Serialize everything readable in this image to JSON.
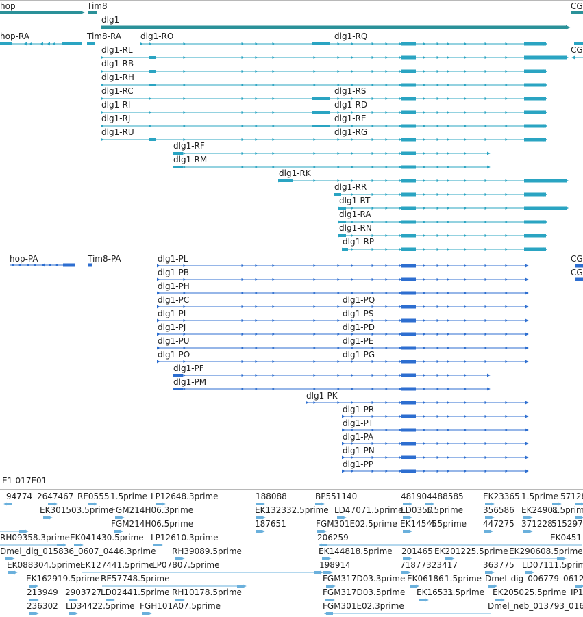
{
  "colors": {
    "gene": "#2a9199",
    "transcript": "#2aa4c2",
    "protein": "#2d6ed0",
    "est": "#6ab0dc",
    "separator": "#b8b8b8",
    "label": "#222222"
  },
  "tracks": {
    "est_track_label": "E1-017E01"
  },
  "genes": [
    {
      "name": "hop"
    },
    {
      "name": "Tim8"
    },
    {
      "name": "dlg1"
    },
    {
      "name": "CG"
    }
  ],
  "transcripts": [
    {
      "name": "hop-RA"
    },
    {
      "name": "Tim8-RA"
    },
    {
      "name": "dlg1-RO"
    },
    {
      "name": "dlg1-RQ"
    },
    {
      "name": "dlg1-RL"
    },
    {
      "name": "CG"
    },
    {
      "name": "dlg1-RB"
    },
    {
      "name": "dlg1-RH"
    },
    {
      "name": "dlg1-RC"
    },
    {
      "name": "dlg1-RS"
    },
    {
      "name": "dlg1-RI"
    },
    {
      "name": "dlg1-RD"
    },
    {
      "name": "dlg1-RJ"
    },
    {
      "name": "dlg1-RE"
    },
    {
      "name": "dlg1-RU"
    },
    {
      "name": "dlg1-RG"
    },
    {
      "name": "dlg1-RF"
    },
    {
      "name": "dlg1-RM"
    },
    {
      "name": "dlg1-RK"
    },
    {
      "name": "dlg1-RR"
    },
    {
      "name": "dlg1-RT"
    },
    {
      "name": "dlg1-RA"
    },
    {
      "name": "dlg1-RN"
    },
    {
      "name": "dlg1-RP"
    }
  ],
  "proteins": [
    {
      "name": "hop-PA"
    },
    {
      "name": "Tim8-PA"
    },
    {
      "name": "dlg1-PL"
    },
    {
      "name": "CG"
    },
    {
      "name": "dlg1-PB"
    },
    {
      "name": "CG"
    },
    {
      "name": "dlg1-PH"
    },
    {
      "name": "dlg1-PC"
    },
    {
      "name": "dlg1-PQ"
    },
    {
      "name": "dlg1-PI"
    },
    {
      "name": "dlg1-PS"
    },
    {
      "name": "dlg1-PJ"
    },
    {
      "name": "dlg1-PD"
    },
    {
      "name": "dlg1-PU"
    },
    {
      "name": "dlg1-PE"
    },
    {
      "name": "dlg1-PO"
    },
    {
      "name": "dlg1-PG"
    },
    {
      "name": "dlg1-PF"
    },
    {
      "name": "dlg1-PM"
    },
    {
      "name": "dlg1-PK"
    },
    {
      "name": "dlg1-PR"
    },
    {
      "name": "dlg1-PT"
    },
    {
      "name": "dlg1-PA"
    },
    {
      "name": "dlg1-PN"
    },
    {
      "name": "dlg1-PP"
    }
  ],
  "ests": [
    {
      "name": "94774"
    },
    {
      "name": "2647467"
    },
    {
      "name": "RE0555"
    },
    {
      "name": "1.5prime"
    },
    {
      "name": "LP12648.3prime"
    },
    {
      "name": "188088"
    },
    {
      "name": "BP551140"
    },
    {
      "name": "481904488585"
    },
    {
      "name": "EK23365"
    },
    {
      "name": "1.5prime"
    },
    {
      "name": "57128"
    },
    {
      "name": "EK301503.5prime"
    },
    {
      "name": "FGM214H06.3prime"
    },
    {
      "name": "EK132332.5prime"
    },
    {
      "name": "LD47071.5prime"
    },
    {
      "name": "LD0350"
    },
    {
      "name": "5.5prime"
    },
    {
      "name": "356586"
    },
    {
      "name": "EK24901"
    },
    {
      "name": "8.5prime"
    },
    {
      "name": "FGM214H06.5prime"
    },
    {
      "name": "187651"
    },
    {
      "name": "FGM301E02.5prime"
    },
    {
      "name": "EK14545"
    },
    {
      "name": "4.5prime"
    },
    {
      "name": "447275"
    },
    {
      "name": "371228"
    },
    {
      "name": "515297"
    },
    {
      "name": "RH09358.3prime"
    },
    {
      "name": "EK041430.5prime"
    },
    {
      "name": "LP12610.3prime"
    },
    {
      "name": "206259"
    },
    {
      "name": "EK0451"
    },
    {
      "name": "Dmel_dig_015836_0607_0446.3prime"
    },
    {
      "name": "RH39089.5prime"
    },
    {
      "name": "EK144818.5prime"
    },
    {
      "name": "201465"
    },
    {
      "name": "EK201225.5prime"
    },
    {
      "name": "EK290608.5prime"
    },
    {
      "name": "EK088304.5prime"
    },
    {
      "name": "EK127441.5prime"
    },
    {
      "name": "LP07807.5prime"
    },
    {
      "name": "198914"
    },
    {
      "name": "71877323417"
    },
    {
      "name": "363775"
    },
    {
      "name": "LD07111.5prime"
    },
    {
      "name": "EK162919.5prime"
    },
    {
      "name": "RE57748.5prime"
    },
    {
      "name": "FGM317D03.3prime"
    },
    {
      "name": "EK06186"
    },
    {
      "name": "1.5prime"
    },
    {
      "name": "Dmel_dig_006779_0612"
    },
    {
      "name": "213949"
    },
    {
      "name": "2903727"
    },
    {
      "name": "LD02441.5prime"
    },
    {
      "name": "RH10178.5prime"
    },
    {
      "name": "FGM317D03.5prime"
    },
    {
      "name": "EK16531"
    },
    {
      "name": "3.5prime"
    },
    {
      "name": "EK205025.5prime"
    },
    {
      "name": "IP1"
    },
    {
      "name": "236302"
    },
    {
      "name": "LD34422.5prime"
    },
    {
      "name": "FGH101A07.5prime"
    },
    {
      "name": "FGM301E02.3prime"
    },
    {
      "name": "Dmel_neb_013793_016"
    }
  ]
}
